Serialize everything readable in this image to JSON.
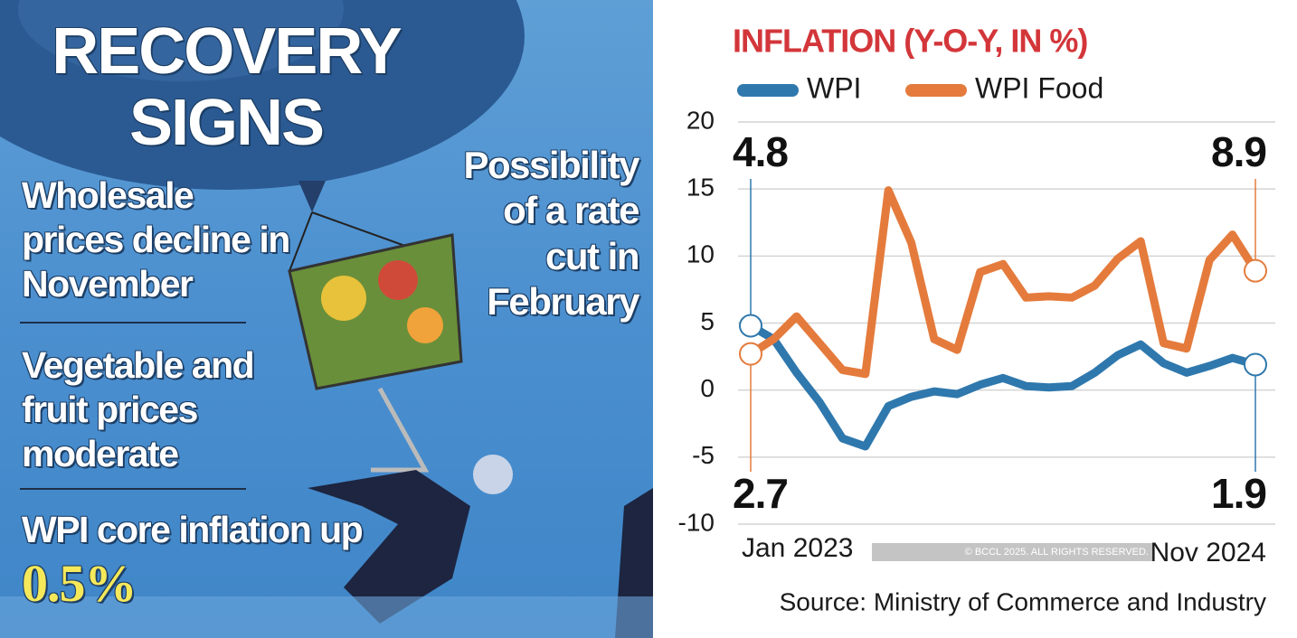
{
  "infographic": {
    "headline": "RECOVERY SIGNS",
    "points": [
      "Wholesale prices decline in November",
      "Vegetable and fruit prices moderate"
    ],
    "core": {
      "text": "WPI core inflation up",
      "highlight": "0.5%"
    },
    "side_note": "Possibility of a rate cut in February",
    "copyright": "© BCCL 2025. ALL RIGHTS RESERVED.",
    "source": "Source: Ministry of Commerce and Industry"
  },
  "chart_data": {
    "type": "line",
    "title": "INFLATION (Y-O-Y, IN %)",
    "categories": [
      "Jan 2023",
      null,
      null,
      null,
      null,
      null,
      null,
      null,
      null,
      null,
      null,
      null,
      null,
      null,
      null,
      null,
      null,
      null,
      null,
      null,
      null,
      null,
      "Nov 2024"
    ],
    "series": [
      {
        "name": "WPI",
        "color": "#2f78ad",
        "values": [
          4.8,
          3.8,
          1.3,
          -0.9,
          -3.6,
          -4.2,
          -1.2,
          -0.5,
          -0.1,
          -0.3,
          0.4,
          0.9,
          0.3,
          0.2,
          0.3,
          1.3,
          2.6,
          3.4,
          2.0,
          1.3,
          1.8,
          2.4,
          1.9
        ]
      },
      {
        "name": "WPI Food",
        "color": "#e47b3c",
        "values": [
          2.7,
          3.8,
          5.5,
          3.5,
          1.5,
          1.2,
          14.9,
          11.0,
          3.8,
          3.0,
          8.8,
          9.4,
          6.9,
          7.0,
          6.9,
          7.8,
          9.8,
          11.1,
          3.5,
          3.1,
          9.7,
          11.6,
          8.9
        ]
      }
    ],
    "ylim": [
      -10,
      20
    ],
    "yticks": [
      -10,
      -5,
      0,
      5,
      10,
      15,
      20
    ],
    "grid": true,
    "legend": "top"
  }
}
